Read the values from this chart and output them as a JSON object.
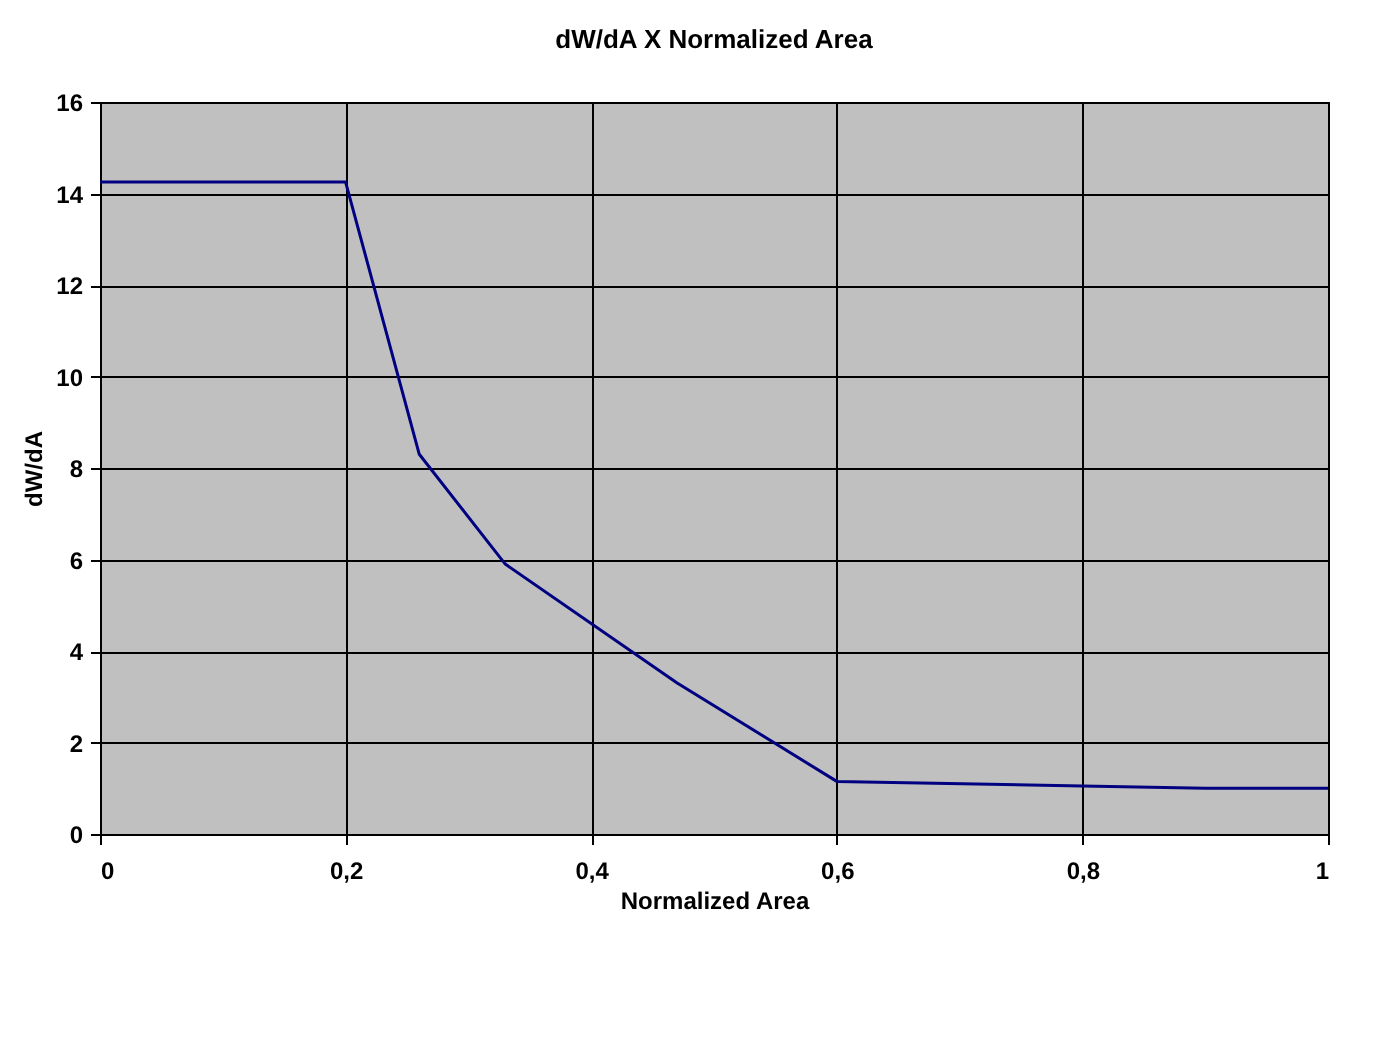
{
  "chart_data": {
    "type": "line",
    "title": "dW/dA X Normalized Area",
    "xlabel": "Normalized Area",
    "ylabel": "dW/dA",
    "x": [
      0,
      0.2,
      0.26,
      0.33,
      0.47,
      0.6,
      0.8,
      0.9,
      1
    ],
    "series": [
      {
        "color": "#000080",
        "values": [
          14.25,
          14.25,
          8.3,
          5.9,
          3.3,
          1.15,
          1.05,
          1.0,
          1.0
        ]
      }
    ],
    "xlim": [
      0,
      1
    ],
    "ylim": [
      0,
      16
    ],
    "xticks": [
      0,
      {
        "value": 0.2,
        "label": "0,2"
      },
      {
        "value": 0.4,
        "label": "0,4"
      },
      {
        "value": 0.6,
        "label": "0,6"
      },
      {
        "value": 0.8,
        "label": "0,8"
      },
      1
    ],
    "yticks": [
      0,
      2,
      4,
      6,
      8,
      10,
      12,
      14,
      16
    ],
    "grid": true,
    "marker": "none",
    "line_style": "solid"
  }
}
